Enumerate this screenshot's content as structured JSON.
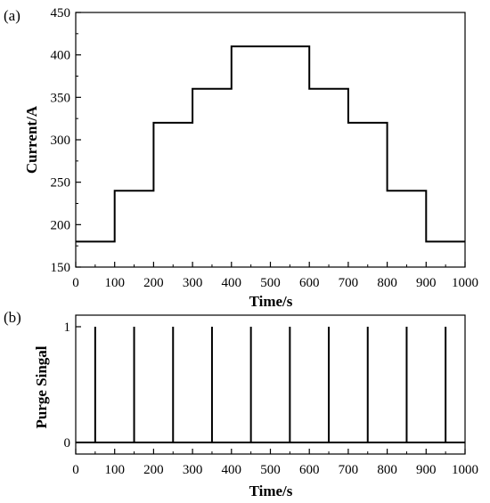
{
  "chart_data": [
    {
      "panel": "(a)",
      "type": "line",
      "step": true,
      "xlabel": "Time/s",
      "ylabel": "Current/A",
      "xlim": [
        0,
        1000
      ],
      "ylim": [
        150,
        450
      ],
      "xticks": [
        0,
        100,
        200,
        300,
        400,
        500,
        600,
        700,
        800,
        900,
        1000
      ],
      "yticks": [
        150,
        200,
        250,
        300,
        350,
        400,
        450
      ],
      "grid": false,
      "series": [
        {
          "x": [
            0,
            100,
            200,
            300,
            400,
            600,
            700,
            800,
            900,
            1000
          ],
          "y": [
            180,
            240,
            320,
            360,
            410,
            360,
            320,
            240,
            180,
            180
          ]
        }
      ]
    },
    {
      "panel": "(b)",
      "type": "line",
      "pulse": true,
      "xlabel": "Time/s",
      "ylabel": "Purge Singal",
      "xlim": [
        0,
        1000
      ],
      "ylim": [
        -0.1,
        1.1
      ],
      "xticks": [
        0,
        100,
        200,
        300,
        400,
        500,
        600,
        700,
        800,
        900,
        1000
      ],
      "yticks": [
        0,
        1
      ],
      "grid": false,
      "series": [
        {
          "pulses_at": [
            50,
            150,
            250,
            350,
            450,
            550,
            650,
            750,
            850,
            950
          ],
          "high": 1,
          "low": 0
        }
      ]
    }
  ]
}
